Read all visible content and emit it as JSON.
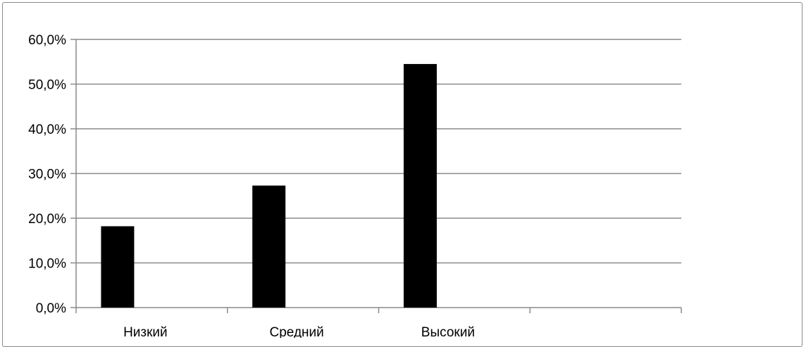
{
  "chart_data": {
    "type": "bar",
    "categories": [
      "Низкий",
      "Средний",
      "Высокий",
      ""
    ],
    "values": [
      18.2,
      27.3,
      54.5,
      null
    ],
    "title": "",
    "xlabel": "",
    "ylabel": "",
    "ylim": [
      0,
      60
    ],
    "yticks": [
      "0,0%",
      "10,0%",
      "20,0%",
      "30,0%",
      "40,0%",
      "50,0%",
      "60,0%"
    ],
    "grid": true,
    "legend": "none",
    "colors": {
      "bar": "#000000",
      "grid": "#8a8a8a",
      "axis": "#8a8a8a",
      "frame": "#8a8a8a"
    }
  }
}
